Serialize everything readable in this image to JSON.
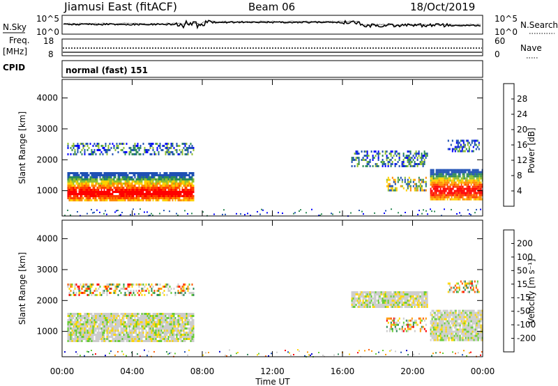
{
  "header": {
    "station": "Jiamusi East (fitACF)",
    "beam": "Beam 06",
    "date": "18/Oct/2019"
  },
  "nsky_panel": {
    "label": "N.Sky",
    "right_label": "N.Search",
    "left_ticks": [
      "10^5",
      "10^0"
    ],
    "right_ticks": [
      "10^5",
      "10^0"
    ]
  },
  "freq_panel": {
    "label_line1": "Freq.",
    "label_line2": "[MHz]",
    "left_ticks": [
      "18",
      "8"
    ],
    "right_ticks": [
      "60",
      "0"
    ],
    "right_label": "Nave"
  },
  "cpid_panel": {
    "label": "CPID",
    "program": "normal (fast) 151"
  },
  "power_colorbar": {
    "label": "Power [dB]",
    "ticks": [
      "28",
      "24",
      "20",
      "16",
      "12",
      "8",
      "4"
    ],
    "colors": [
      "#0000ff",
      "#1e50b4",
      "#2e8b57",
      "#90c030",
      "#ffd000",
      "#ff8c00",
      "#ff4000",
      "#ff0000"
    ]
  },
  "velocity_colorbar": {
    "label": "Velocity [m s⁻¹]",
    "ticks": [
      "200",
      "100",
      "50",
      "15",
      "-15",
      "-50",
      "-100",
      "-200"
    ],
    "colors": [
      "#ff0000",
      "#ff5a00",
      "#ff9a00",
      "#ffd700",
      "#cccccc",
      "#66cc33",
      "#2e8b57",
      "#1e50b4",
      "#0000cc"
    ]
  },
  "chart_data": {
    "type": "heatmap",
    "x_ticks": [
      "00:00",
      "04:00",
      "08:00",
      "12:00",
      "16:00",
      "20:00",
      "00:00"
    ],
    "xlabel": "Time UT",
    "y_ticks": [
      "1000",
      "2000",
      "3000",
      "4000"
    ],
    "ylabel": "Slant Range [km]",
    "ylim": [
      180,
      4600
    ],
    "xlim_hours": [
      0,
      24
    ],
    "panels": [
      {
        "name": "power",
        "regions": [
          {
            "t0": 0.3,
            "t1": 7.5,
            "r0": 700,
            "r1": 1600,
            "level": "strong"
          },
          {
            "t0": 0.3,
            "t1": 7.5,
            "r0": 2150,
            "r1": 2550,
            "level": "weak"
          },
          {
            "t0": 16.5,
            "t1": 20.8,
            "r0": 1800,
            "r1": 2300,
            "level": "weak"
          },
          {
            "t0": 18.5,
            "t1": 20.8,
            "r0": 1000,
            "r1": 1450,
            "level": "medium"
          },
          {
            "t0": 21.0,
            "t1": 24.0,
            "r0": 750,
            "r1": 1700,
            "level": "strong"
          },
          {
            "t0": 22.0,
            "t1": 23.8,
            "r0": 2250,
            "r1": 2650,
            "level": "weak"
          }
        ]
      },
      {
        "name": "velocity",
        "regions": [
          {
            "t0": 0.3,
            "t1": 7.5,
            "r0": 700,
            "r1": 1600,
            "level": "ground"
          },
          {
            "t0": 0.3,
            "t1": 7.5,
            "r0": 2150,
            "r1": 2550,
            "level": "mixed"
          },
          {
            "t0": 16.5,
            "t1": 20.8,
            "r0": 1800,
            "r1": 2300,
            "level": "ground"
          },
          {
            "t0": 18.5,
            "t1": 20.8,
            "r0": 1000,
            "r1": 1450,
            "level": "mixed"
          },
          {
            "t0": 21.0,
            "t1": 24.0,
            "r0": 750,
            "r1": 1700,
            "level": "ground"
          },
          {
            "t0": 22.0,
            "t1": 23.8,
            "r0": 2250,
            "r1": 2650,
            "level": "mixed"
          }
        ]
      }
    ]
  }
}
